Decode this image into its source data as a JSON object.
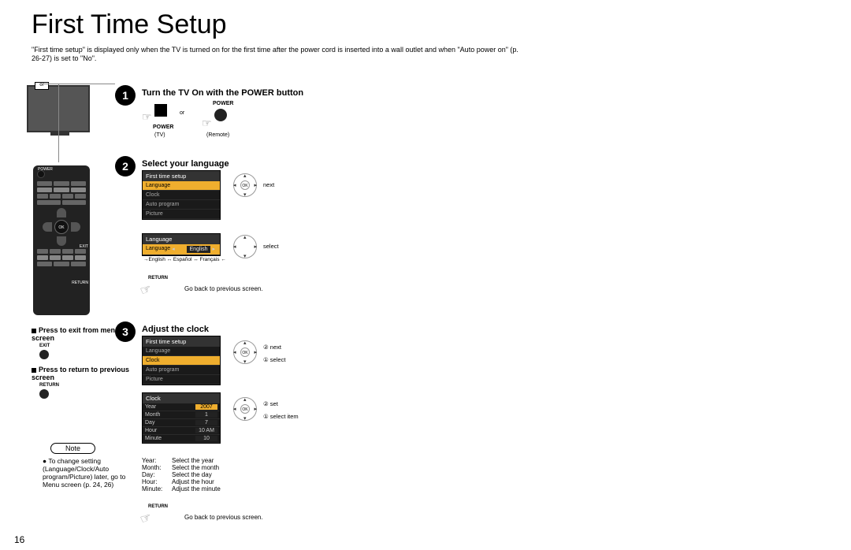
{
  "title": "First Time Setup",
  "intro": "\"First time setup\" is displayed only when the TV is turned on for the first time after the power cord is inserted into a wall outlet and when \"Auto power on\" (p. 26-27) is set to \"No\".",
  "page_number": "16",
  "tv_button_label": "or",
  "step1": {
    "num": "1",
    "title": "Turn the TV On with the POWER button",
    "power_label": "POWER",
    "tv_label": "(TV)",
    "or": "or",
    "remote_label": "(Remote)"
  },
  "step2": {
    "num": "2",
    "title": "Select your language",
    "osd_title": "First time setup",
    "items": [
      "Language",
      "Clock",
      "Auto program",
      "Picture"
    ],
    "nav_label": "next",
    "lang_title": "Language",
    "lang_key": "Language",
    "lang_val": "English",
    "lang_nav": "select",
    "lang_chain": "→English ↔ Español ↔ Français ←",
    "return_label": "RETURN",
    "return_txt": "Go back to previous screen."
  },
  "step3": {
    "num": "3",
    "title": "Adjust the clock",
    "osd_title": "First time setup",
    "items": [
      "Language",
      "Clock",
      "Auto program",
      "Picture"
    ],
    "nav1": "② next",
    "nav2": "① select",
    "clock_title": "Clock",
    "rows": [
      {
        "k": "Year",
        "v": "2007",
        "sel": true
      },
      {
        "k": "Month",
        "v": "1"
      },
      {
        "k": "Day",
        "v": "7"
      },
      {
        "k": "Hour",
        "v": "10 AM"
      },
      {
        "k": "Minute",
        "v": "10"
      }
    ],
    "navc1": "② set",
    "navc2": "① select item",
    "desc": [
      {
        "k": "Year:",
        "v": "Select the year"
      },
      {
        "k": "Month:",
        "v": "Select the month"
      },
      {
        "k": "Day:",
        "v": "Select the day"
      },
      {
        "k": "Hour:",
        "v": "Adjust the hour"
      },
      {
        "k": "Minute:",
        "v": "Adjust the minute"
      }
    ],
    "return_label": "RETURN",
    "return_txt": "Go back to previous screen."
  },
  "left": {
    "exit_heading": "Press to exit from menu screen",
    "exit_lbl": "EXIT",
    "return_heading": "Press to return to previous screen",
    "return_lbl": "RETURN",
    "note": "Note",
    "bullet": "To change setting (Language/Clock/Auto program/Picture) later, go to Menu screen (p. 24, 26)"
  },
  "remote": {
    "ok": "OK",
    "power": "POWER",
    "exit": "EXIT",
    "return": "RETURN"
  }
}
